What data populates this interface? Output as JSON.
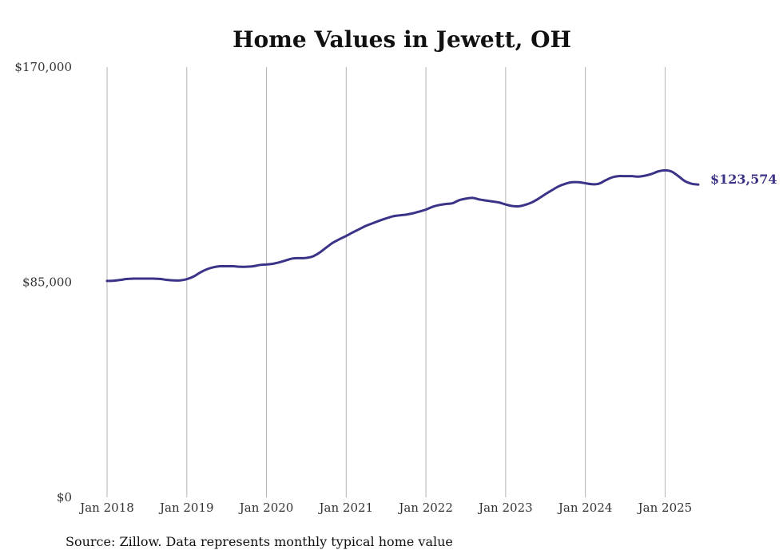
{
  "chart_data": {
    "type": "line",
    "title": "Home Values in Jewett, OH",
    "source": "Source: Zillow. Data represents monthly typical home value",
    "x_tick_labels": [
      "Jan 2018",
      "Jan 2019",
      "Jan 2020",
      "Jan 2021",
      "Jan 2022",
      "Jan 2023",
      "Jan 2024",
      "Jan 2025"
    ],
    "y_tick_labels": [
      "$0",
      "$85,000",
      "$170,000"
    ],
    "y_ticks": [
      0,
      85000,
      170000
    ],
    "ylim": [
      0,
      170000
    ],
    "xlim": [
      "2018-01",
      "2025-06"
    ],
    "grid": "vertical",
    "end_label": "$123,574",
    "series_color": "#3b3388",
    "series": [
      {
        "x": [
          "2018-01",
          "2018-02",
          "2018-03",
          "2018-04",
          "2018-05",
          "2018-06",
          "2018-07",
          "2018-08",
          "2018-09",
          "2018-10",
          "2018-11",
          "2018-12",
          "2019-01",
          "2019-02",
          "2019-03",
          "2019-04",
          "2019-05",
          "2019-06",
          "2019-07",
          "2019-08",
          "2019-09",
          "2019-10",
          "2019-11",
          "2019-12",
          "2020-01",
          "2020-02",
          "2020-03",
          "2020-04",
          "2020-05",
          "2020-06",
          "2020-07",
          "2020-08",
          "2020-09",
          "2020-10",
          "2020-11",
          "2020-12",
          "2021-01",
          "2021-02",
          "2021-03",
          "2021-04",
          "2021-05",
          "2021-06",
          "2021-07",
          "2021-08",
          "2021-09",
          "2021-10",
          "2021-11",
          "2021-12",
          "2022-01",
          "2022-02",
          "2022-03",
          "2022-04",
          "2022-05",
          "2022-06",
          "2022-07",
          "2022-08",
          "2022-09",
          "2022-10",
          "2022-11",
          "2022-12",
          "2023-01",
          "2023-02",
          "2023-03",
          "2023-04",
          "2023-05",
          "2023-06",
          "2023-07",
          "2023-08",
          "2023-09",
          "2023-10",
          "2023-11",
          "2023-12",
          "2024-01",
          "2024-02",
          "2024-03",
          "2024-04",
          "2024-05",
          "2024-06",
          "2024-07",
          "2024-08",
          "2024-09",
          "2024-10",
          "2024-11",
          "2024-12",
          "2025-01",
          "2025-02",
          "2025-03",
          "2025-04",
          "2025-05",
          "2025-06"
        ],
        "y": [
          85500,
          85600,
          85900,
          86300,
          86400,
          86400,
          86400,
          86400,
          86300,
          85900,
          85700,
          85700,
          86200,
          87200,
          88800,
          90100,
          90900,
          91300,
          91300,
          91300,
          91100,
          91100,
          91300,
          91800,
          92000,
          92300,
          92900,
          93700,
          94400,
          94500,
          94600,
          95200,
          96700,
          98700,
          100600,
          102000,
          103300,
          104700,
          106000,
          107300,
          108300,
          109300,
          110200,
          111000,
          111400,
          111700,
          112200,
          112900,
          113700,
          114800,
          115500,
          115900,
          116200,
          117400,
          118000,
          118300,
          117700,
          117300,
          116900,
          116500,
          115700,
          115100,
          115000,
          115600,
          116600,
          118100,
          119800,
          121400,
          122900,
          123900,
          124500,
          124500,
          124100,
          123700,
          123900,
          125200,
          126400,
          126900,
          126900,
          126900,
          126700,
          127100,
          127800,
          128800,
          129200,
          128700,
          126900,
          124900,
          123900,
          123574
        ]
      }
    ]
  }
}
